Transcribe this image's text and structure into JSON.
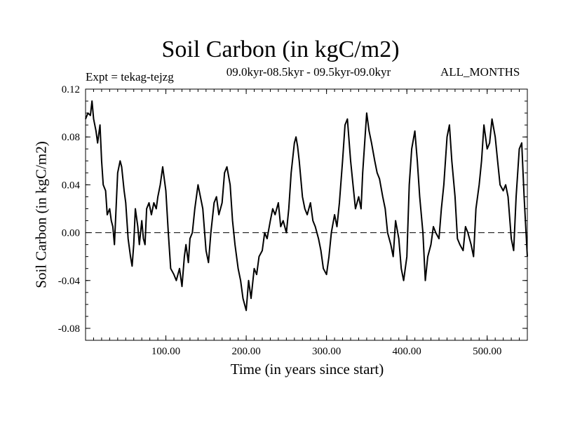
{
  "chart_data": {
    "type": "line",
    "title": "Soil Carbon (in kgC/m2)",
    "subtitle": "09.0kyr-08.5kyr - 09.5kyr-09.0kyr",
    "left_annotation": "Expt = tekag-tejzg",
    "right_annotation": "ALL_MONTHS",
    "xlabel": "Time (in years since start)",
    "ylabel": "Soil Carbon (in kgC/m2)",
    "xlim": [
      0,
      550
    ],
    "ylim": [
      -0.09,
      0.12
    ],
    "xticks": [
      100,
      200,
      300,
      400,
      500
    ],
    "xtick_labels": [
      "100.00",
      "200.00",
      "300.00",
      "400.00",
      "500.00"
    ],
    "yticks": [
      -0.08,
      -0.04,
      0.0,
      0.04,
      0.08,
      0.12
    ],
    "ytick_labels": [
      "-0.08",
      "-0.04",
      "0.00",
      "0.04",
      "0.08",
      "0.12"
    ],
    "reference_line": {
      "y": 0.0,
      "style": "dashed"
    },
    "series": [
      {
        "name": "Soil Carbon",
        "color": "#000000",
        "x": [
          0,
          3,
          6,
          8,
          10,
          13,
          15,
          18,
          20,
          22,
          25,
          27,
          30,
          32,
          34,
          36,
          38,
          40,
          43,
          45,
          48,
          50,
          53,
          56,
          58,
          60,
          62,
          65,
          67,
          70,
          72,
          74,
          76,
          79,
          82,
          85,
          88,
          90,
          93,
          96,
          100,
          103,
          106,
          110,
          113,
          117,
          120,
          123,
          125,
          128,
          130,
          133,
          136,
          140,
          143,
          146,
          150,
          153,
          156,
          160,
          163,
          166,
          170,
          173,
          176,
          180,
          183,
          186,
          190,
          193,
          196,
          200,
          203,
          206,
          210,
          213,
          216,
          220,
          223,
          226,
          230,
          233,
          236,
          240,
          243,
          246,
          250,
          253,
          256,
          260,
          262,
          264,
          266,
          270,
          273,
          276,
          280,
          283,
          286,
          290,
          293,
          296,
          300,
          303,
          306,
          310,
          313,
          316,
          320,
          323,
          326,
          330,
          333,
          336,
          340,
          343,
          345,
          348,
          350,
          353,
          356,
          360,
          363,
          366,
          370,
          373,
          376,
          380,
          383,
          386,
          390,
          393,
          396,
          400,
          403,
          406,
          410,
          413,
          416,
          420,
          423,
          426,
          430,
          433,
          436,
          440,
          443,
          446,
          450,
          453,
          456,
          460,
          463,
          466,
          470,
          473,
          476,
          480,
          483,
          486,
          490,
          493,
          496,
          500,
          503,
          506,
          510,
          513,
          516,
          520,
          523,
          526,
          530,
          533,
          536,
          540,
          543,
          546,
          550
        ],
        "y": [
          0.095,
          0.1,
          0.098,
          0.11,
          0.095,
          0.085,
          0.075,
          0.09,
          0.06,
          0.04,
          0.035,
          0.015,
          0.02,
          0.01,
          0.005,
          -0.01,
          0.02,
          0.05,
          0.06,
          0.055,
          0.035,
          0.025,
          -0.005,
          -0.02,
          -0.028,
          -0.01,
          0.02,
          0.005,
          -0.01,
          0.01,
          -0.005,
          -0.01,
          0.02,
          0.025,
          0.015,
          0.025,
          0.02,
          0.03,
          0.04,
          0.055,
          0.035,
          0.0,
          -0.03,
          -0.035,
          -0.04,
          -0.03,
          -0.045,
          -0.02,
          -0.01,
          -0.025,
          -0.005,
          0.0,
          0.02,
          0.04,
          0.03,
          0.02,
          -0.015,
          -0.025,
          0.0,
          0.025,
          0.03,
          0.015,
          0.025,
          0.05,
          0.055,
          0.04,
          0.01,
          -0.01,
          -0.03,
          -0.04,
          -0.055,
          -0.065,
          -0.04,
          -0.055,
          -0.03,
          -0.035,
          -0.02,
          -0.015,
          0.0,
          -0.005,
          0.01,
          0.02,
          0.015,
          0.025,
          0.005,
          0.01,
          0.0,
          0.02,
          0.05,
          0.075,
          0.08,
          0.072,
          0.06,
          0.03,
          0.02,
          0.015,
          0.025,
          0.01,
          0.005,
          -0.005,
          -0.015,
          -0.03,
          -0.035,
          -0.02,
          0.0,
          0.015,
          0.005,
          0.025,
          0.06,
          0.09,
          0.095,
          0.06,
          0.04,
          0.02,
          0.03,
          0.02,
          0.05,
          0.08,
          0.1,
          0.085,
          0.075,
          0.06,
          0.05,
          0.045,
          0.03,
          0.02,
          0.0,
          -0.01,
          -0.02,
          0.01,
          -0.005,
          -0.03,
          -0.04,
          -0.02,
          0.04,
          0.07,
          0.085,
          0.06,
          0.03,
          0.0,
          -0.04,
          -0.02,
          -0.01,
          0.005,
          0.0,
          -0.005,
          0.02,
          0.04,
          0.08,
          0.09,
          0.06,
          0.03,
          -0.005,
          -0.01,
          -0.015,
          0.005,
          0.0,
          -0.01,
          -0.02,
          0.02,
          0.04,
          0.06,
          0.09,
          0.07,
          0.075,
          0.095,
          0.08,
          0.06,
          0.04,
          0.035,
          0.04,
          0.03,
          -0.005,
          -0.015,
          0.03,
          0.07,
          0.075,
          0.03,
          -0.02
        ]
      }
    ]
  }
}
